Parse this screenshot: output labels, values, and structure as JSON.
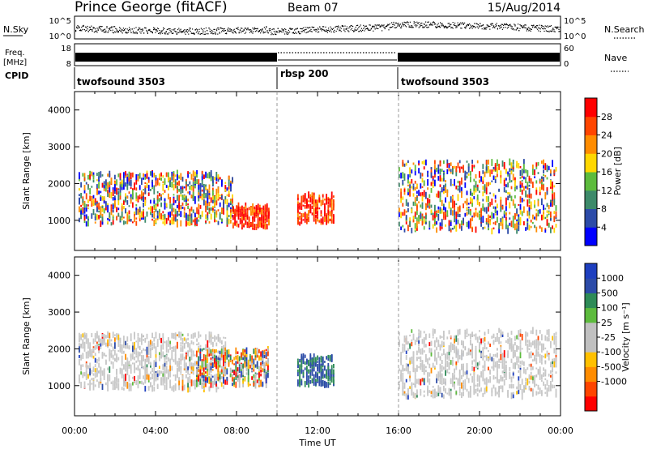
{
  "header": {
    "station": "Prince George (fitACF)",
    "beam": "Beam 07",
    "date": "15/Aug/2014"
  },
  "strip_sky": {
    "left_label": "N.Sky",
    "left_ticks": [
      "10^5",
      "10^0"
    ],
    "right_ticks": [
      "10^5",
      "10^0"
    ],
    "right_label": "N.Search"
  },
  "strip_freq": {
    "left_label_top": "Freq.",
    "left_label_bottom": "[MHz]",
    "left_ticks": [
      "18",
      "8"
    ],
    "right_ticks": [
      "60",
      "0"
    ],
    "right_label": "Nave"
  },
  "cpid": {
    "label": "CPID",
    "segments": [
      {
        "name": "twofsound 3503",
        "start": 0,
        "end": 10
      },
      {
        "name": "rbsp 200",
        "start": 10,
        "end": 16
      },
      {
        "name": "twofsound 3503",
        "start": 16,
        "end": 24
      }
    ]
  },
  "colors": {
    "power": [
      "#0000ff",
      "#2c4ba8",
      "#3d8a6a",
      "#5dbb3d",
      "#ffd700",
      "#ff8c00",
      "#ff4500",
      "#ff0000"
    ],
    "velocity": [
      "#ff0000",
      "#ff4500",
      "#ff8c00",
      "#ffc000",
      "#c0c0c0",
      "#c0c0c0",
      "#5dbb3d",
      "#2e8b57",
      "#2c4ba8",
      "#1e3fbf"
    ]
  },
  "chart_data": [
    {
      "type": "heatmap",
      "title": "",
      "xlabel": "Time UT",
      "ylabel": "Slant Range [km]",
      "xlim": [
        0,
        24
      ],
      "ylim": [
        180,
        4500
      ],
      "xticks": [
        "00:00",
        "04:00",
        "08:00",
        "12:00",
        "16:00",
        "20:00",
        "00:00"
      ],
      "yticks": [
        1000,
        2000,
        3000,
        4000
      ],
      "colorbar": {
        "label": "Power [dB]",
        "ticks": [
          4,
          8,
          12,
          16,
          20,
          24,
          28
        ],
        "range": [
          0,
          32
        ]
      },
      "echo_regions": [
        {
          "t0": 0.2,
          "t1": 7.8,
          "r0": 900,
          "r1": 2300,
          "level": "mixed"
        },
        {
          "t0": 7.8,
          "t1": 9.6,
          "r0": 800,
          "r1": 1400,
          "level": "strong"
        },
        {
          "t0": 11.0,
          "t1": 12.8,
          "r0": 900,
          "r1": 1700,
          "level": "strong"
        },
        {
          "t0": 16.0,
          "t1": 23.8,
          "r0": 700,
          "r1": 2600,
          "level": "mixed"
        }
      ]
    },
    {
      "type": "heatmap",
      "title": "",
      "xlabel": "Time UT",
      "ylabel": "Slant Range [km]",
      "xlim": [
        0,
        24
      ],
      "ylim": [
        180,
        4500
      ],
      "xticks": [
        "00:00",
        "04:00",
        "08:00",
        "12:00",
        "16:00",
        "20:00",
        "00:00"
      ],
      "yticks": [
        1000,
        2000,
        3000,
        4000
      ],
      "colorbar": {
        "label": "Velocity [m s⁻¹]",
        "ticks": [
          1000,
          500,
          100,
          25,
          -25,
          -100,
          -500,
          -1000
        ],
        "range": [
          -1500,
          1500
        ]
      },
      "echo_regions": [
        {
          "t0": 0.2,
          "t1": 7.5,
          "r0": 900,
          "r1": 2400,
          "level": "ground-scatter"
        },
        {
          "t0": 6.0,
          "t1": 9.6,
          "r0": 1000,
          "r1": 2000,
          "level": "mixed"
        },
        {
          "t0": 11.0,
          "t1": 12.8,
          "r0": 1000,
          "r1": 1800,
          "level": "positive"
        },
        {
          "t0": 16.0,
          "t1": 23.8,
          "r0": 700,
          "r1": 2500,
          "level": "ground-scatter"
        }
      ]
    }
  ]
}
